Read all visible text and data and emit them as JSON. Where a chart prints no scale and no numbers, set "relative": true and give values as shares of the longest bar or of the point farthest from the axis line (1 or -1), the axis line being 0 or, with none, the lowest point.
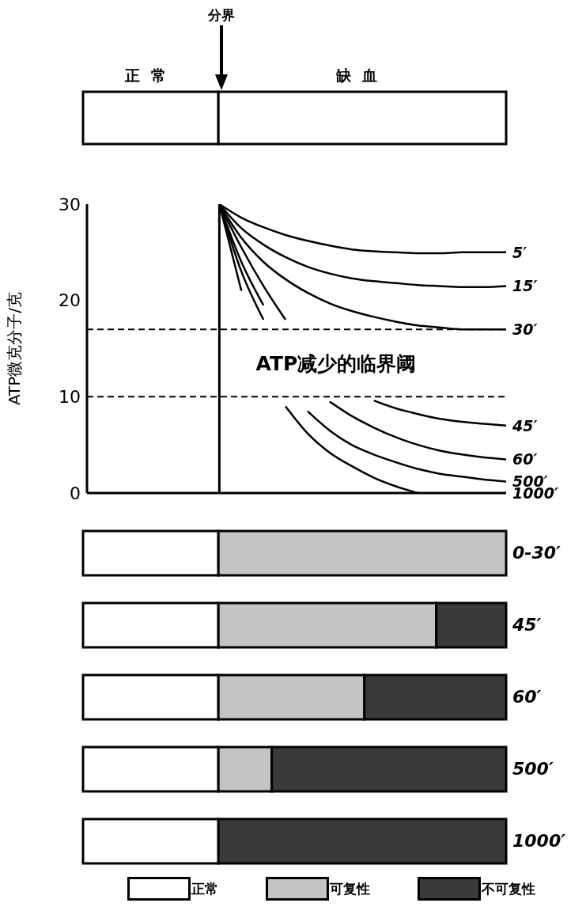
{
  "chart_data": [
    {
      "type": "bar",
      "orientation": "horizontal",
      "stacked": true,
      "relative": true,
      "categories": [
        null
      ],
      "annotations": [
        "分界"
      ],
      "series": [
        {
          "name": "正常",
          "color": "#ffffff",
          "values": [
            0.32
          ]
        },
        {
          "name": "缺血",
          "color": "#ffffff",
          "values": [
            0.68
          ]
        }
      ]
    },
    {
      "type": "line",
      "ylabel": "ATP微克分子/克",
      "ylim": [
        0,
        30
      ],
      "yticks": [
        0,
        10,
        20,
        30
      ],
      "tick_labels": "y",
      "line_style": "solid",
      "marker": "none",
      "categories": [
        null,
        null,
        null,
        null,
        null,
        null,
        null,
        null,
        null,
        null,
        null,
        null,
        null,
        null,
        null,
        null,
        null,
        null,
        null,
        null
      ],
      "ref_lines": [
        {
          "axis": "y",
          "value": 17,
          "line_style": "dashed"
        },
        {
          "axis": "y",
          "value": 10,
          "line_style": "dashed"
        }
      ],
      "annotations": [
        "ATP减少的临界阈"
      ],
      "series": [
        {
          "name": "5′",
          "color": "#000000",
          "values": [
            null,
            null,
            null,
            null,
            null,
            null,
            30,
            28.6,
            27.6,
            26.8,
            26.2,
            25.7,
            25.3,
            25.1,
            25,
            24.9,
            24.9,
            25,
            25,
            25
          ]
        },
        {
          "name": "15′",
          "color": "#000000",
          "values": [
            null,
            null,
            null,
            null,
            null,
            null,
            30,
            27.5,
            25.8,
            24.5,
            23.5,
            22.8,
            22.3,
            22,
            21.8,
            21.6,
            21.5,
            21.4,
            21.4,
            21.5
          ]
        },
        {
          "name": "30′",
          "color": "#000000",
          "values": [
            null,
            null,
            null,
            null,
            null,
            null,
            30,
            26.5,
            24,
            22.2,
            20.8,
            19.7,
            18.9,
            18.3,
            17.8,
            17.4,
            17.2,
            17,
            17,
            17
          ]
        },
        {
          "name": "45′",
          "color": "#000000",
          "values": [
            null,
            null,
            null,
            null,
            null,
            null,
            30,
            25.5,
            21.5,
            18,
            null,
            null,
            null,
            9.6,
            8.8,
            8.2,
            7.7,
            7.4,
            7.2,
            7
          ]
        },
        {
          "name": "60′",
          "color": "#000000",
          "values": [
            null,
            null,
            null,
            null,
            null,
            null,
            30,
            24,
            19.5,
            null,
            null,
            9.5,
            8,
            6.8,
            5.8,
            5,
            4.4,
            4,
            3.7,
            3.5
          ]
        },
        {
          "name": "500′",
          "color": "#000000",
          "values": [
            null,
            null,
            null,
            null,
            null,
            null,
            30,
            23,
            18,
            null,
            8.5,
            6.5,
            5,
            4,
            3.2,
            2.5,
            2,
            1.7,
            1.4,
            1.2
          ]
        },
        {
          "name": "1000′",
          "color": "#000000",
          "values": [
            null,
            null,
            null,
            null,
            null,
            null,
            30,
            21,
            null,
            9,
            6.2,
            4.2,
            2.8,
            1.6,
            0.7,
            0,
            null,
            null,
            null,
            null
          ]
        }
      ]
    },
    {
      "type": "bar",
      "orientation": "horizontal",
      "stacked": true,
      "relative": true,
      "legend": "bottom",
      "categories": [
        "0-30′",
        "45′",
        "60′",
        "500′",
        "1000′"
      ],
      "series": [
        {
          "name": "正常",
          "color": "#ffffff",
          "values": [
            0.32,
            0.32,
            0.32,
            0.32,
            0.32
          ]
        },
        {
          "name": "可复性",
          "color": "#c4c4c4",
          "values": [
            0.68,
            0.515,
            0.345,
            0.126,
            0
          ]
        },
        {
          "name": "不可复性",
          "color": "#3a3a3a",
          "values": [
            0,
            0.165,
            0.335,
            0.554,
            0.68
          ]
        }
      ]
    }
  ]
}
